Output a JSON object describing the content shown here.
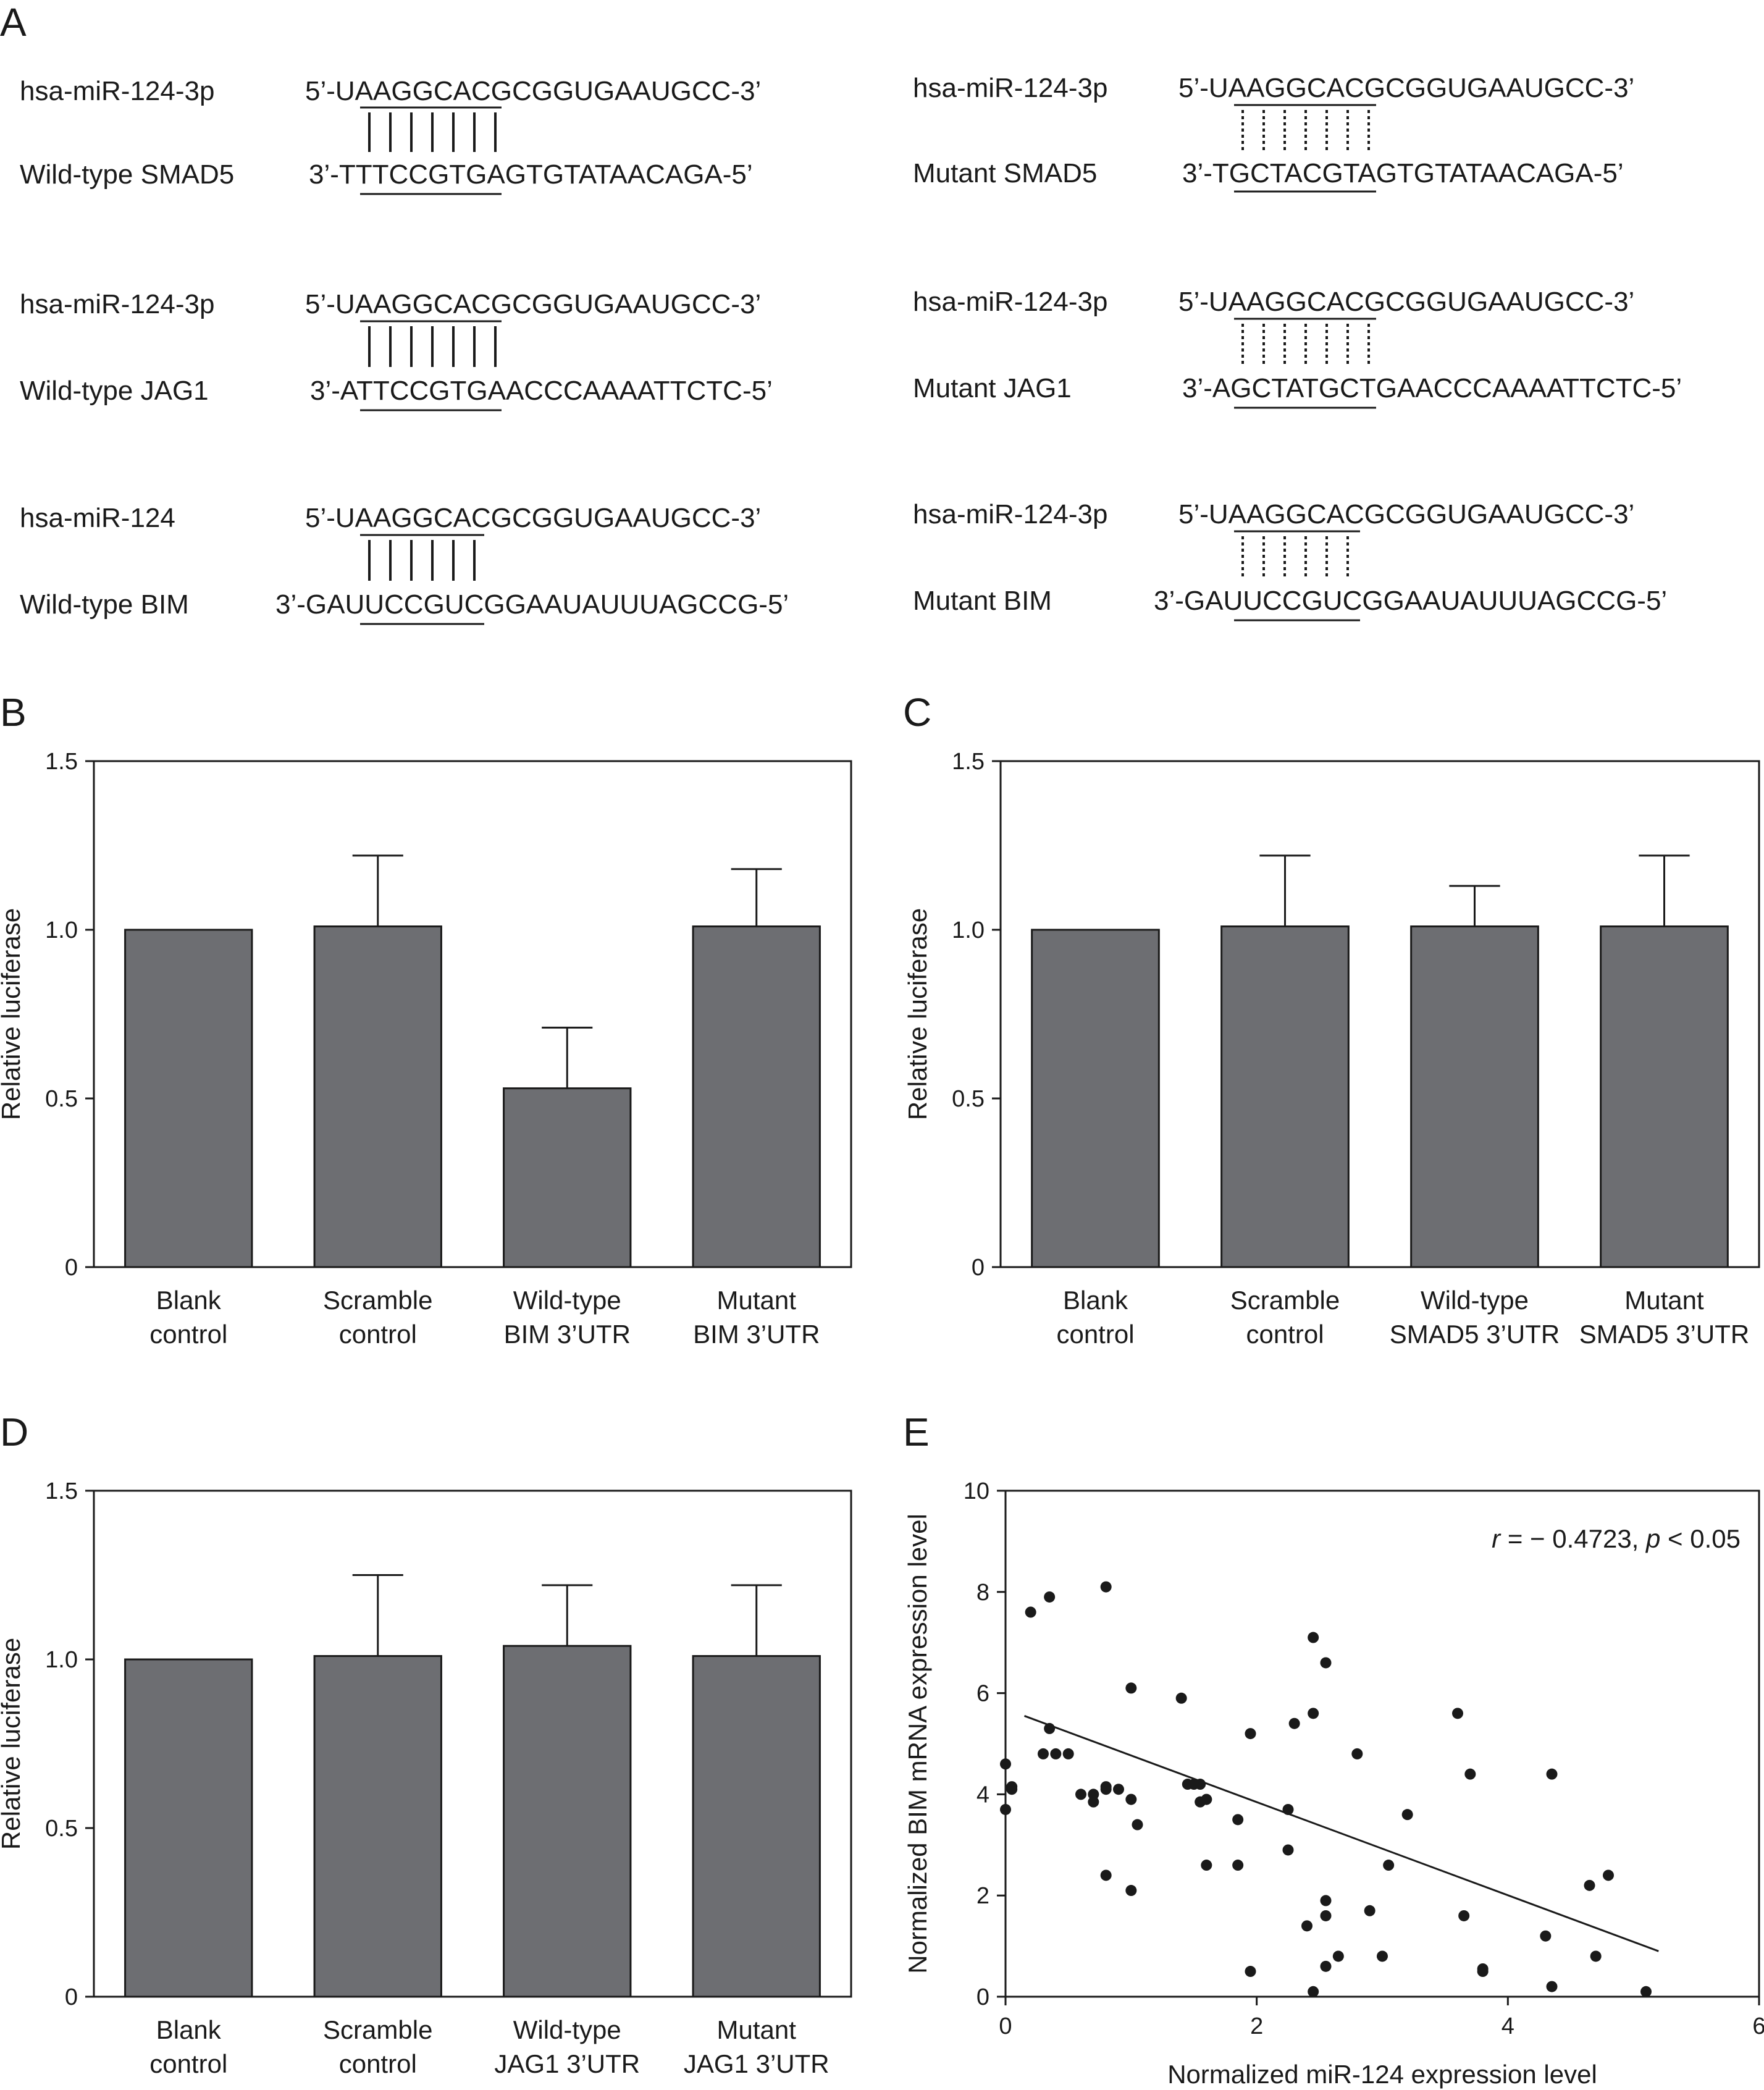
{
  "panels": {
    "A": "A",
    "B": "B",
    "C": "C",
    "D": "D",
    "E": "E"
  },
  "alignments": [
    {
      "mirna_label": "hsa-miR-124-3p",
      "mirna_seq": "5’-UAAGGCACGCGGUGAAUGCC-3’",
      "target_label": "Wild-type SMAD5",
      "target_seq": "3’-TTTCCGTGAGTGTATAACAGA-5’",
      "pairing": "solid",
      "pairs": 7
    },
    {
      "mirna_label": "hsa-miR-124-3p",
      "mirna_seq": "5’-UAAGGCACGCGGUGAAUGCC-3’",
      "target_label": "Mutant SMAD5",
      "target_seq": "3’-TGCTACGTAGTGTATAACAGA-5’",
      "pairing": "dashed",
      "pairs": 7
    },
    {
      "mirna_label": "hsa-miR-124-3p",
      "mirna_seq": "5’-UAAGGCACGCGGUGAAUGCC-3’",
      "target_label": "Wild-type JAG1",
      "target_seq": "3’-ATTCCGTGAACCCAAAATTCTC-5’",
      "pairing": "solid",
      "pairs": 7
    },
    {
      "mirna_label": "hsa-miR-124-3p",
      "mirna_seq": "5’-UAAGGCACGCGGUGAAUGCC-3’",
      "target_label": "Mutant JAG1",
      "target_seq": "3’-AGCTATGCTGAACCCAAAATTCTC-5’",
      "pairing": "dashed",
      "pairs": 7
    },
    {
      "mirna_label": "hsa-miR-124",
      "mirna_seq": "5’-UAAGGCACGCGGUGAAUGCC-3’",
      "target_label": "Wild-type BIM",
      "target_seq": "3’-GAUUCCGUCGGAAUAUUUAGCCG-5’",
      "pairing": "solid",
      "pairs": 6
    },
    {
      "mirna_label": "hsa-miR-124-3p",
      "mirna_seq": "5’-UAAGGCACGCGGUGAAUGCC-3’",
      "target_label": "Mutant BIM",
      "target_seq": "3’-GAUUCCGUCGGAAUAUUUAGCCG-5’",
      "pairing": "dashed",
      "pairs": 6
    }
  ],
  "colors": {
    "bar": "#6d6e72",
    "ink": "#1a1a1a"
  },
  "chart_data": [
    {
      "panel": "B",
      "type": "bar",
      "ylabel": "Relative luciferase",
      "ylim": [
        0,
        1.5
      ],
      "yticks": [
        "0",
        "0.5",
        "1.0",
        "1.5"
      ],
      "categories": [
        [
          "Blank",
          "control"
        ],
        [
          "Scramble",
          "control"
        ],
        [
          "Wild-type",
          "BIM 3’UTR"
        ],
        [
          "Mutant",
          "BIM 3’UTR"
        ]
      ],
      "values": [
        1.0,
        1.01,
        0.53,
        1.01
      ],
      "errors": [
        0,
        0.21,
        0.18,
        0.17
      ]
    },
    {
      "panel": "C",
      "type": "bar",
      "ylabel": "Relative luciferase",
      "ylim": [
        0,
        1.5
      ],
      "yticks": [
        "0",
        "0.5",
        "1.0",
        "1.5"
      ],
      "categories": [
        [
          "Blank",
          "control"
        ],
        [
          "Scramble",
          "control"
        ],
        [
          "Wild-type",
          "SMAD5 3’UTR"
        ],
        [
          "Mutant",
          "SMAD5 3’UTR"
        ]
      ],
      "values": [
        1.0,
        1.01,
        1.01,
        1.01
      ],
      "errors": [
        0,
        0.21,
        0.12,
        0.21
      ]
    },
    {
      "panel": "D",
      "type": "bar",
      "ylabel": "Relative luciferase",
      "ylim": [
        0,
        1.5
      ],
      "yticks": [
        "0",
        "0.5",
        "1.0",
        "1.5"
      ],
      "categories": [
        [
          "Blank",
          "control"
        ],
        [
          "Scramble",
          "control"
        ],
        [
          "Wild-type",
          "JAG1 3’UTR"
        ],
        [
          "Mutant",
          "JAG1 3’UTR"
        ]
      ],
      "values": [
        1.0,
        1.01,
        1.04,
        1.01
      ],
      "errors": [
        0,
        0.24,
        0.18,
        0.21
      ]
    },
    {
      "panel": "E",
      "type": "scatter",
      "xlabel": "Normalized miR-124 expression level",
      "ylabel": "Normalized BIM mRNA expression level",
      "xlim": [
        0,
        6
      ],
      "ylim": [
        0,
        10
      ],
      "xticks": [
        "0",
        "2",
        "4",
        "6"
      ],
      "yticks": [
        "0",
        "2",
        "4",
        "6",
        "8",
        "10"
      ],
      "annotation": {
        "r": "r",
        "r_value": " = − 0.4723, ",
        "p": "p",
        "p_value": " < 0.05"
      },
      "fit_line": [
        [
          0.15,
          5.55
        ],
        [
          5.2,
          0.9
        ]
      ],
      "points": [
        [
          0.0,
          4.6
        ],
        [
          0.0,
          3.7
        ],
        [
          0.05,
          4.1
        ],
        [
          0.05,
          4.15
        ],
        [
          0.2,
          7.6
        ],
        [
          0.3,
          4.8
        ],
        [
          0.35,
          5.3
        ],
        [
          0.35,
          7.9
        ],
        [
          0.4,
          4.8
        ],
        [
          0.5,
          4.8
        ],
        [
          0.6,
          4.0
        ],
        [
          0.7,
          3.85
        ],
        [
          0.7,
          4.0
        ],
        [
          0.8,
          4.1
        ],
        [
          0.8,
          4.15
        ],
        [
          0.8,
          8.1
        ],
        [
          0.8,
          2.4
        ],
        [
          0.9,
          4.1
        ],
        [
          1.0,
          6.1
        ],
        [
          1.0,
          3.9
        ],
        [
          1.05,
          3.4
        ],
        [
          1.0,
          2.1
        ],
        [
          1.4,
          5.9
        ],
        [
          1.45,
          4.2
        ],
        [
          1.5,
          4.2
        ],
        [
          1.55,
          4.2
        ],
        [
          1.55,
          3.85
        ],
        [
          1.6,
          3.9
        ],
        [
          1.6,
          2.6
        ],
        [
          1.85,
          3.5
        ],
        [
          1.85,
          2.6
        ],
        [
          1.95,
          5.2
        ],
        [
          1.95,
          0.5
        ],
        [
          2.25,
          2.9
        ],
        [
          2.25,
          3.7
        ],
        [
          2.3,
          5.4
        ],
        [
          2.4,
          1.4
        ],
        [
          2.45,
          7.1
        ],
        [
          2.45,
          5.6
        ],
        [
          2.45,
          0.1
        ],
        [
          2.55,
          6.6
        ],
        [
          2.55,
          1.6
        ],
        [
          2.55,
          1.9
        ],
        [
          2.55,
          0.6
        ],
        [
          2.65,
          0.8
        ],
        [
          2.8,
          4.8
        ],
        [
          2.9,
          1.7
        ],
        [
          3.0,
          0.8
        ],
        [
          3.05,
          2.6
        ],
        [
          3.2,
          3.6
        ],
        [
          3.6,
          5.6
        ],
        [
          3.65,
          1.6
        ],
        [
          3.7,
          4.4
        ],
        [
          3.8,
          0.5
        ],
        [
          3.8,
          0.55
        ],
        [
          4.3,
          1.2
        ],
        [
          4.35,
          4.4
        ],
        [
          4.35,
          0.2
        ],
        [
          4.65,
          2.2
        ],
        [
          4.7,
          0.8
        ],
        [
          4.8,
          2.4
        ],
        [
          5.1,
          0.1
        ]
      ]
    }
  ]
}
